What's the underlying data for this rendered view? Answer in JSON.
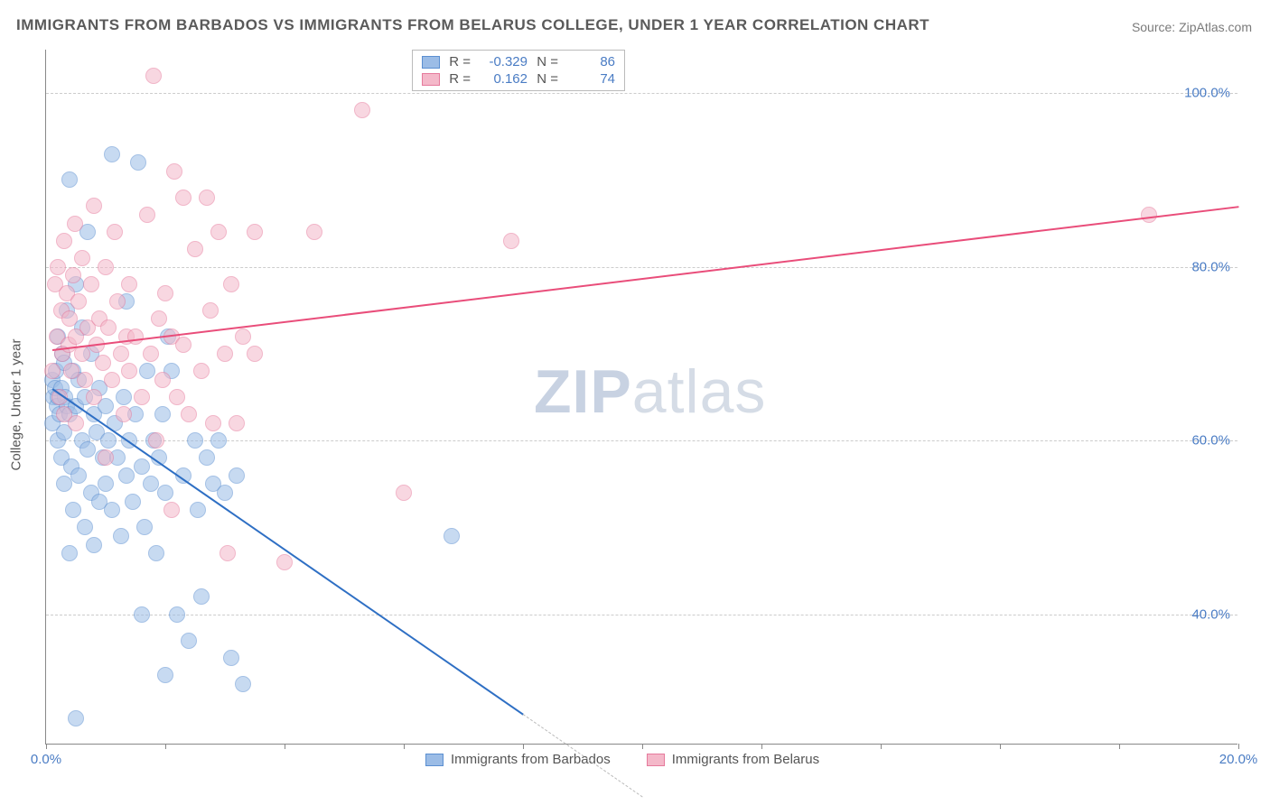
{
  "title": "IMMIGRANTS FROM BARBADOS VS IMMIGRANTS FROM BELARUS COLLEGE, UNDER 1 YEAR CORRELATION CHART",
  "source": {
    "prefix": "Source: ",
    "name": "ZipAtlas.com"
  },
  "y_label": "College, Under 1 year",
  "watermark": {
    "a": "ZIP",
    "b": "atlas"
  },
  "chart": {
    "type": "scatter",
    "background_color": "#ffffff",
    "grid_color": "#cccccc",
    "grid_style": "dashed",
    "axis_color": "#888888",
    "xlim": [
      0,
      20
    ],
    "ylim": [
      25,
      105
    ],
    "x_ticks": [
      0.0,
      20.0
    ],
    "x_tick_labels": [
      "0.0%",
      "20.0%"
    ],
    "x_minor_ticks": [
      0,
      2,
      4,
      6,
      8,
      10,
      12,
      14,
      16,
      18,
      20
    ],
    "y_ticks": [
      40,
      60,
      80,
      100
    ],
    "y_tick_labels": [
      "40.0%",
      "60.0%",
      "80.0%",
      "100.0%"
    ],
    "tick_color": "#4a7cc4",
    "tick_fontsize": 15,
    "label_color": "#555555",
    "label_fontsize": 15,
    "marker_radius": 9,
    "marker_opacity": 0.55,
    "marker_border_opacity": 0.9,
    "series": [
      {
        "name": "Immigrants from Barbados",
        "color_fill": "#9bbce6",
        "color_border": "#5b8fd1",
        "color_line": "#2e6fc4",
        "R": "-0.329",
        "N": "86",
        "trend": {
          "x1": 0.1,
          "y1": 66,
          "x2": 8.0,
          "y2": 28.5,
          "extrapolate_to_x": 10.0
        },
        "points": [
          [
            0.1,
            67
          ],
          [
            0.1,
            62
          ],
          [
            0.12,
            65
          ],
          [
            0.15,
            66
          ],
          [
            0.16,
            68
          ],
          [
            0.18,
            64
          ],
          [
            0.2,
            72
          ],
          [
            0.2,
            60
          ],
          [
            0.22,
            63
          ],
          [
            0.25,
            66
          ],
          [
            0.25,
            58
          ],
          [
            0.28,
            70
          ],
          [
            0.3,
            61
          ],
          [
            0.3,
            55
          ],
          [
            0.32,
            65
          ],
          [
            0.35,
            64
          ],
          [
            0.35,
            75
          ],
          [
            0.4,
            90
          ],
          [
            0.4,
            63
          ],
          [
            0.42,
            57
          ],
          [
            0.45,
            68
          ],
          [
            0.45,
            52
          ],
          [
            0.5,
            64
          ],
          [
            0.5,
            78
          ],
          [
            0.55,
            56
          ],
          [
            0.55,
            67
          ],
          [
            0.6,
            60
          ],
          [
            0.6,
            73
          ],
          [
            0.65,
            50
          ],
          [
            0.65,
            65
          ],
          [
            0.7,
            59
          ],
          [
            0.75,
            54
          ],
          [
            0.75,
            70
          ],
          [
            0.8,
            63
          ],
          [
            0.8,
            48
          ],
          [
            0.85,
            61
          ],
          [
            0.9,
            66
          ],
          [
            0.9,
            53
          ],
          [
            0.95,
            58
          ],
          [
            1.0,
            64
          ],
          [
            1.0,
            55
          ],
          [
            1.05,
            60
          ],
          [
            1.1,
            93
          ],
          [
            1.1,
            52
          ],
          [
            1.15,
            62
          ],
          [
            1.2,
            58
          ],
          [
            1.25,
            49
          ],
          [
            1.3,
            65
          ],
          [
            1.35,
            56
          ],
          [
            1.35,
            76
          ],
          [
            1.4,
            60
          ],
          [
            1.45,
            53
          ],
          [
            1.5,
            63
          ],
          [
            1.55,
            92
          ],
          [
            1.6,
            57
          ],
          [
            1.65,
            50
          ],
          [
            1.7,
            68
          ],
          [
            1.75,
            55
          ],
          [
            1.8,
            60
          ],
          [
            1.85,
            47
          ],
          [
            1.9,
            58
          ],
          [
            1.95,
            63
          ],
          [
            2.0,
            33
          ],
          [
            2.0,
            54
          ],
          [
            2.05,
            72
          ],
          [
            2.1,
            68
          ],
          [
            2.2,
            40
          ],
          [
            2.3,
            56
          ],
          [
            2.4,
            37
          ],
          [
            2.5,
            60
          ],
          [
            2.55,
            52
          ],
          [
            2.6,
            42
          ],
          [
            2.7,
            58
          ],
          [
            2.8,
            55
          ],
          [
            2.9,
            60
          ],
          [
            3.0,
            54
          ],
          [
            3.1,
            35
          ],
          [
            3.2,
            56
          ],
          [
            3.3,
            32
          ],
          [
            0.5,
            28
          ],
          [
            0.7,
            84
          ],
          [
            0.4,
            47
          ],
          [
            1.6,
            40
          ],
          [
            6.8,
            49
          ],
          [
            0.3,
            69
          ],
          [
            0.2,
            65
          ]
        ]
      },
      {
        "name": "Immigrants from Belarus",
        "color_fill": "#f4b8c9",
        "color_border": "#e67a9c",
        "color_line": "#e94d7a",
        "R": "0.162",
        "N": "74",
        "trend": {
          "x1": 0.1,
          "y1": 70.5,
          "x2": 20.0,
          "y2": 87
        },
        "points": [
          [
            0.1,
            68
          ],
          [
            0.15,
            78
          ],
          [
            0.18,
            72
          ],
          [
            0.2,
            80
          ],
          [
            0.22,
            65
          ],
          [
            0.25,
            75
          ],
          [
            0.28,
            70
          ],
          [
            0.3,
            83
          ],
          [
            0.3,
            63
          ],
          [
            0.35,
            77
          ],
          [
            0.38,
            71
          ],
          [
            0.4,
            74
          ],
          [
            0.42,
            68
          ],
          [
            0.45,
            79
          ],
          [
            0.48,
            85
          ],
          [
            0.5,
            72
          ],
          [
            0.5,
            62
          ],
          [
            0.55,
            76
          ],
          [
            0.6,
            70
          ],
          [
            0.6,
            81
          ],
          [
            0.65,
            67
          ],
          [
            0.7,
            73
          ],
          [
            0.75,
            78
          ],
          [
            0.8,
            87
          ],
          [
            0.8,
            65
          ],
          [
            0.85,
            71
          ],
          [
            0.9,
            74
          ],
          [
            0.95,
            69
          ],
          [
            1.0,
            80
          ],
          [
            1.0,
            58
          ],
          [
            1.05,
            73
          ],
          [
            1.1,
            67
          ],
          [
            1.15,
            84
          ],
          [
            1.2,
            76
          ],
          [
            1.25,
            70
          ],
          [
            1.3,
            63
          ],
          [
            1.35,
            72
          ],
          [
            1.4,
            68
          ],
          [
            1.4,
            78
          ],
          [
            1.5,
            72
          ],
          [
            1.6,
            65
          ],
          [
            1.7,
            86
          ],
          [
            1.75,
            70
          ],
          [
            1.8,
            102
          ],
          [
            1.85,
            60
          ],
          [
            1.9,
            74
          ],
          [
            1.95,
            67
          ],
          [
            2.0,
            77
          ],
          [
            2.1,
            52
          ],
          [
            2.1,
            72
          ],
          [
            2.15,
            91
          ],
          [
            2.2,
            65
          ],
          [
            2.3,
            71
          ],
          [
            2.3,
            88
          ],
          [
            2.4,
            63
          ],
          [
            2.5,
            82
          ],
          [
            2.6,
            68
          ],
          [
            2.7,
            88
          ],
          [
            2.75,
            75
          ],
          [
            2.8,
            62
          ],
          [
            2.9,
            84
          ],
          [
            3.0,
            70
          ],
          [
            3.05,
            47
          ],
          [
            3.1,
            78
          ],
          [
            3.2,
            62
          ],
          [
            3.3,
            72
          ],
          [
            3.5,
            70
          ],
          [
            3.5,
            84
          ],
          [
            4.0,
            46
          ],
          [
            4.5,
            84
          ],
          [
            5.3,
            98
          ],
          [
            6.0,
            54
          ],
          [
            7.8,
            83
          ],
          [
            18.5,
            86
          ]
        ]
      }
    ],
    "bottom_legend": [
      {
        "label": "Immigrants from Barbados",
        "fill": "#9bbce6",
        "border": "#5b8fd1"
      },
      {
        "label": "Immigrants from Belarus",
        "fill": "#f4b8c9",
        "border": "#e67a9c"
      }
    ]
  }
}
